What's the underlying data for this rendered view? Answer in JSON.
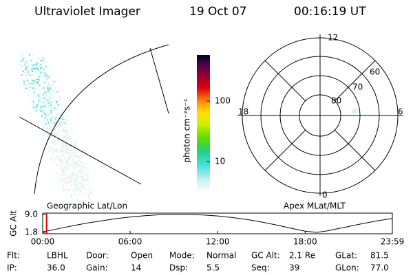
{
  "header": {
    "title": "Ultraviolet Imager",
    "date": "19 Oct 07",
    "time": "00:16:19 UT"
  },
  "colorbar": {
    "label": "photon cm⁻²s⁻¹",
    "tick_labels": [
      "100",
      "10"
    ]
  },
  "polar": {
    "mlt_labels": [
      "12",
      "18",
      "6",
      "0"
    ],
    "lat_labels": [
      "60",
      "70",
      "80"
    ]
  },
  "panel_labels": {
    "left": "Geographic Lat/Lon",
    "right": "Apex MLat/MLT"
  },
  "chart_data": {
    "type": "line",
    "y_label": "GC Alt",
    "color": "#000000",
    "x": [
      0,
      1,
      2,
      3,
      4,
      5,
      6,
      7,
      8,
      9,
      9.5,
      10,
      11,
      12,
      13,
      14,
      15,
      16,
      17,
      18,
      18.8,
      19.5,
      20,
      21,
      22,
      23,
      23.98
    ],
    "values": [
      2.0,
      3.2,
      4.4,
      5.5,
      6.4,
      7.3,
      8.0,
      8.5,
      8.9,
      9.0,
      9.0,
      9.0,
      8.8,
      8.4,
      7.8,
      7.0,
      6.0,
      4.8,
      3.5,
      2.3,
      1.8,
      2.4,
      3.0,
      4.2,
      5.4,
      6.5,
      7.4
    ],
    "xlim": [
      0,
      23.98
    ],
    "xticks": [
      {
        "value": 0,
        "label": "00:00"
      },
      {
        "value": 6,
        "label": "06:00"
      },
      {
        "value": 12,
        "label": "12:00"
      },
      {
        "value": 18,
        "label": "18:00"
      },
      {
        "value": 23.98,
        "label": "23:59"
      }
    ],
    "ylim": [
      1.8,
      9.0
    ],
    "yticks": [
      {
        "value": 9.0,
        "label": "9.0"
      },
      1.8
    ],
    "marker": {
      "x": 0.27,
      "color": "#e00000"
    }
  },
  "footer": {
    "rows": [
      [
        "Flt:",
        "LBHL",
        "Door:",
        "Open",
        "Mode:",
        "Normal",
        "GC Alt:",
        "2.1 Re",
        "GLat:",
        "81.5"
      ],
      [
        "IP:",
        "36.0",
        "Gain:",
        "14",
        "Dsp:",
        "5.5",
        "Seq:",
        "39",
        "GLon:",
        "77.0"
      ]
    ]
  }
}
